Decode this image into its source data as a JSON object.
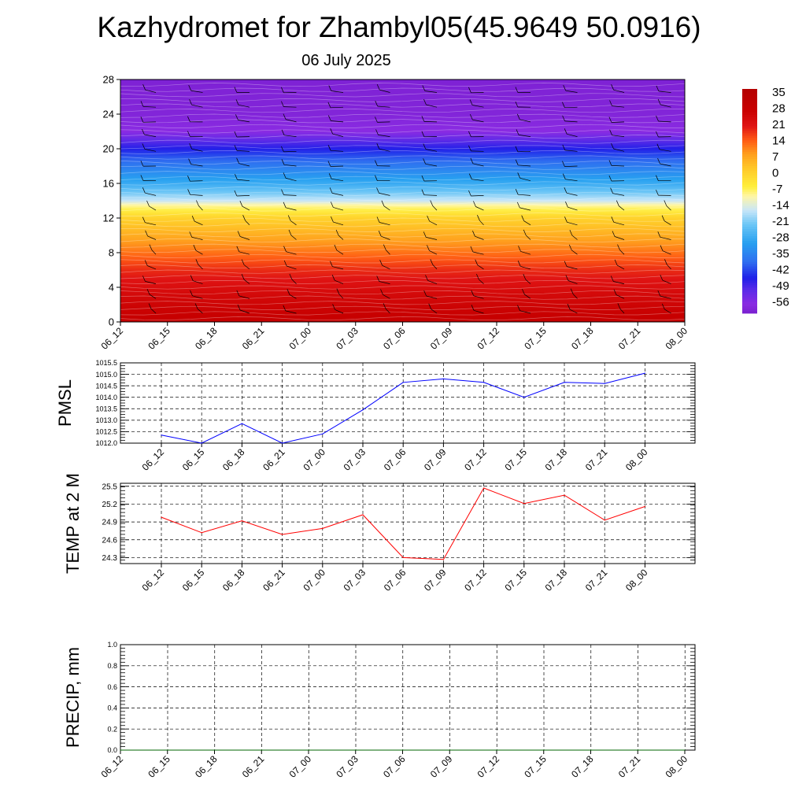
{
  "title": "Kazhydromet for Zhambyl05(45.9649 50.0916)",
  "subtitle": "06 July 2025",
  "chart_data": [
    {
      "type": "heatmap",
      "name": "vertical-cross-section",
      "x_ticks": [
        "06_12",
        "06_15",
        "06_18",
        "06_21",
        "07_00",
        "07_03",
        "07_06",
        "07_09",
        "07_12",
        "07_15",
        "07_18",
        "07_21",
        "08_00"
      ],
      "ylim": [
        0,
        28
      ],
      "y_ticks": [
        "0",
        "4",
        "8",
        "12",
        "16",
        "20",
        "24",
        "28"
      ],
      "colorbar_labels": [
        "35",
        "28",
        "21",
        "14",
        "7",
        "0",
        "-7",
        "-14",
        "-21",
        "-28",
        "-35",
        "-42",
        "-49",
        "-56"
      ],
      "colorbar_range": [
        -60,
        36
      ],
      "temperature_profile": [
        {
          "level": 0,
          "value": 28
        },
        {
          "level": 3,
          "value": 24
        },
        {
          "level": 6,
          "value": 18
        },
        {
          "level": 9,
          "value": 9
        },
        {
          "level": 12,
          "value": 0
        },
        {
          "level": 13.5,
          "value": -10
        },
        {
          "level": 14,
          "value": -16
        },
        {
          "level": 16,
          "value": -28
        },
        {
          "level": 19,
          "value": -40
        },
        {
          "level": 22,
          "value": -56
        },
        {
          "level": 24,
          "value": -58
        },
        {
          "level": 28,
          "value": -59
        }
      ],
      "colors": {
        "violet": "#8a2be2",
        "blue": "#1f1fe8",
        "cyan": "#28a0f0",
        "light_blue": "#c8e6f8",
        "yellow": "#ffef3c",
        "orange": "#ffa01e",
        "red": "#e01414",
        "dark_red": "#c80000"
      }
    },
    {
      "type": "line",
      "name": "pmsl",
      "ylabel": "PMSL",
      "x": [
        "06_12",
        "06_15",
        "06_18",
        "06_21",
        "07_00",
        "07_03",
        "07_06",
        "07_09",
        "07_12",
        "07_15",
        "07_18",
        "07_21",
        "08_00"
      ],
      "series": [
        {
          "values": [
            1012.35,
            1012.0,
            1012.85,
            1012.0,
            1012.4,
            1013.45,
            1014.65,
            1014.8,
            1014.65,
            1014.0,
            1014.65,
            1014.6,
            1015.05
          ],
          "color": "#0000ff"
        }
      ],
      "ylim": [
        1012.0,
        1015.5
      ],
      "y_ticks": [
        "1012.0",
        "1012.5",
        "1013.0",
        "1013.5",
        "1014.0",
        "1014.5",
        "1015.0",
        "1015.5"
      ],
      "grid": true
    },
    {
      "type": "line",
      "name": "temp-2m",
      "ylabel": "TEMP at 2 M",
      "x": [
        "06_12",
        "06_15",
        "06_18",
        "06_21",
        "07_00",
        "07_03",
        "07_06",
        "07_09",
        "07_12",
        "07_15",
        "07_18",
        "07_21",
        "08_00"
      ],
      "series": [
        {
          "values": [
            24.98,
            24.72,
            24.92,
            24.69,
            24.79,
            25.02,
            24.3,
            24.27,
            25.47,
            25.21,
            25.35,
            24.93,
            25.16
          ],
          "color": "#ff0000"
        }
      ],
      "ylim": [
        24.2,
        25.55
      ],
      "y_ticks": [
        "24.3",
        "24.6",
        "24.9",
        "25.2",
        "25.5"
      ],
      "grid": true
    },
    {
      "type": "line",
      "name": "precip",
      "ylabel": "PRECIP, mm",
      "x": [
        "06_12",
        "06_15",
        "06_18",
        "06_21",
        "07_00",
        "07_03",
        "07_06",
        "07_09",
        "07_12",
        "07_15",
        "07_18",
        "07_21",
        "08_00"
      ],
      "series": [
        {
          "values": [
            0,
            0,
            0,
            0,
            0,
            0,
            0,
            0,
            0,
            0,
            0,
            0,
            0
          ],
          "color": "#006400"
        }
      ],
      "ylim": [
        0.0,
        1.0
      ],
      "y_ticks": [
        "0.0",
        "0.2",
        "0.4",
        "0.6",
        "0.8",
        "1.0"
      ],
      "grid": true
    }
  ]
}
